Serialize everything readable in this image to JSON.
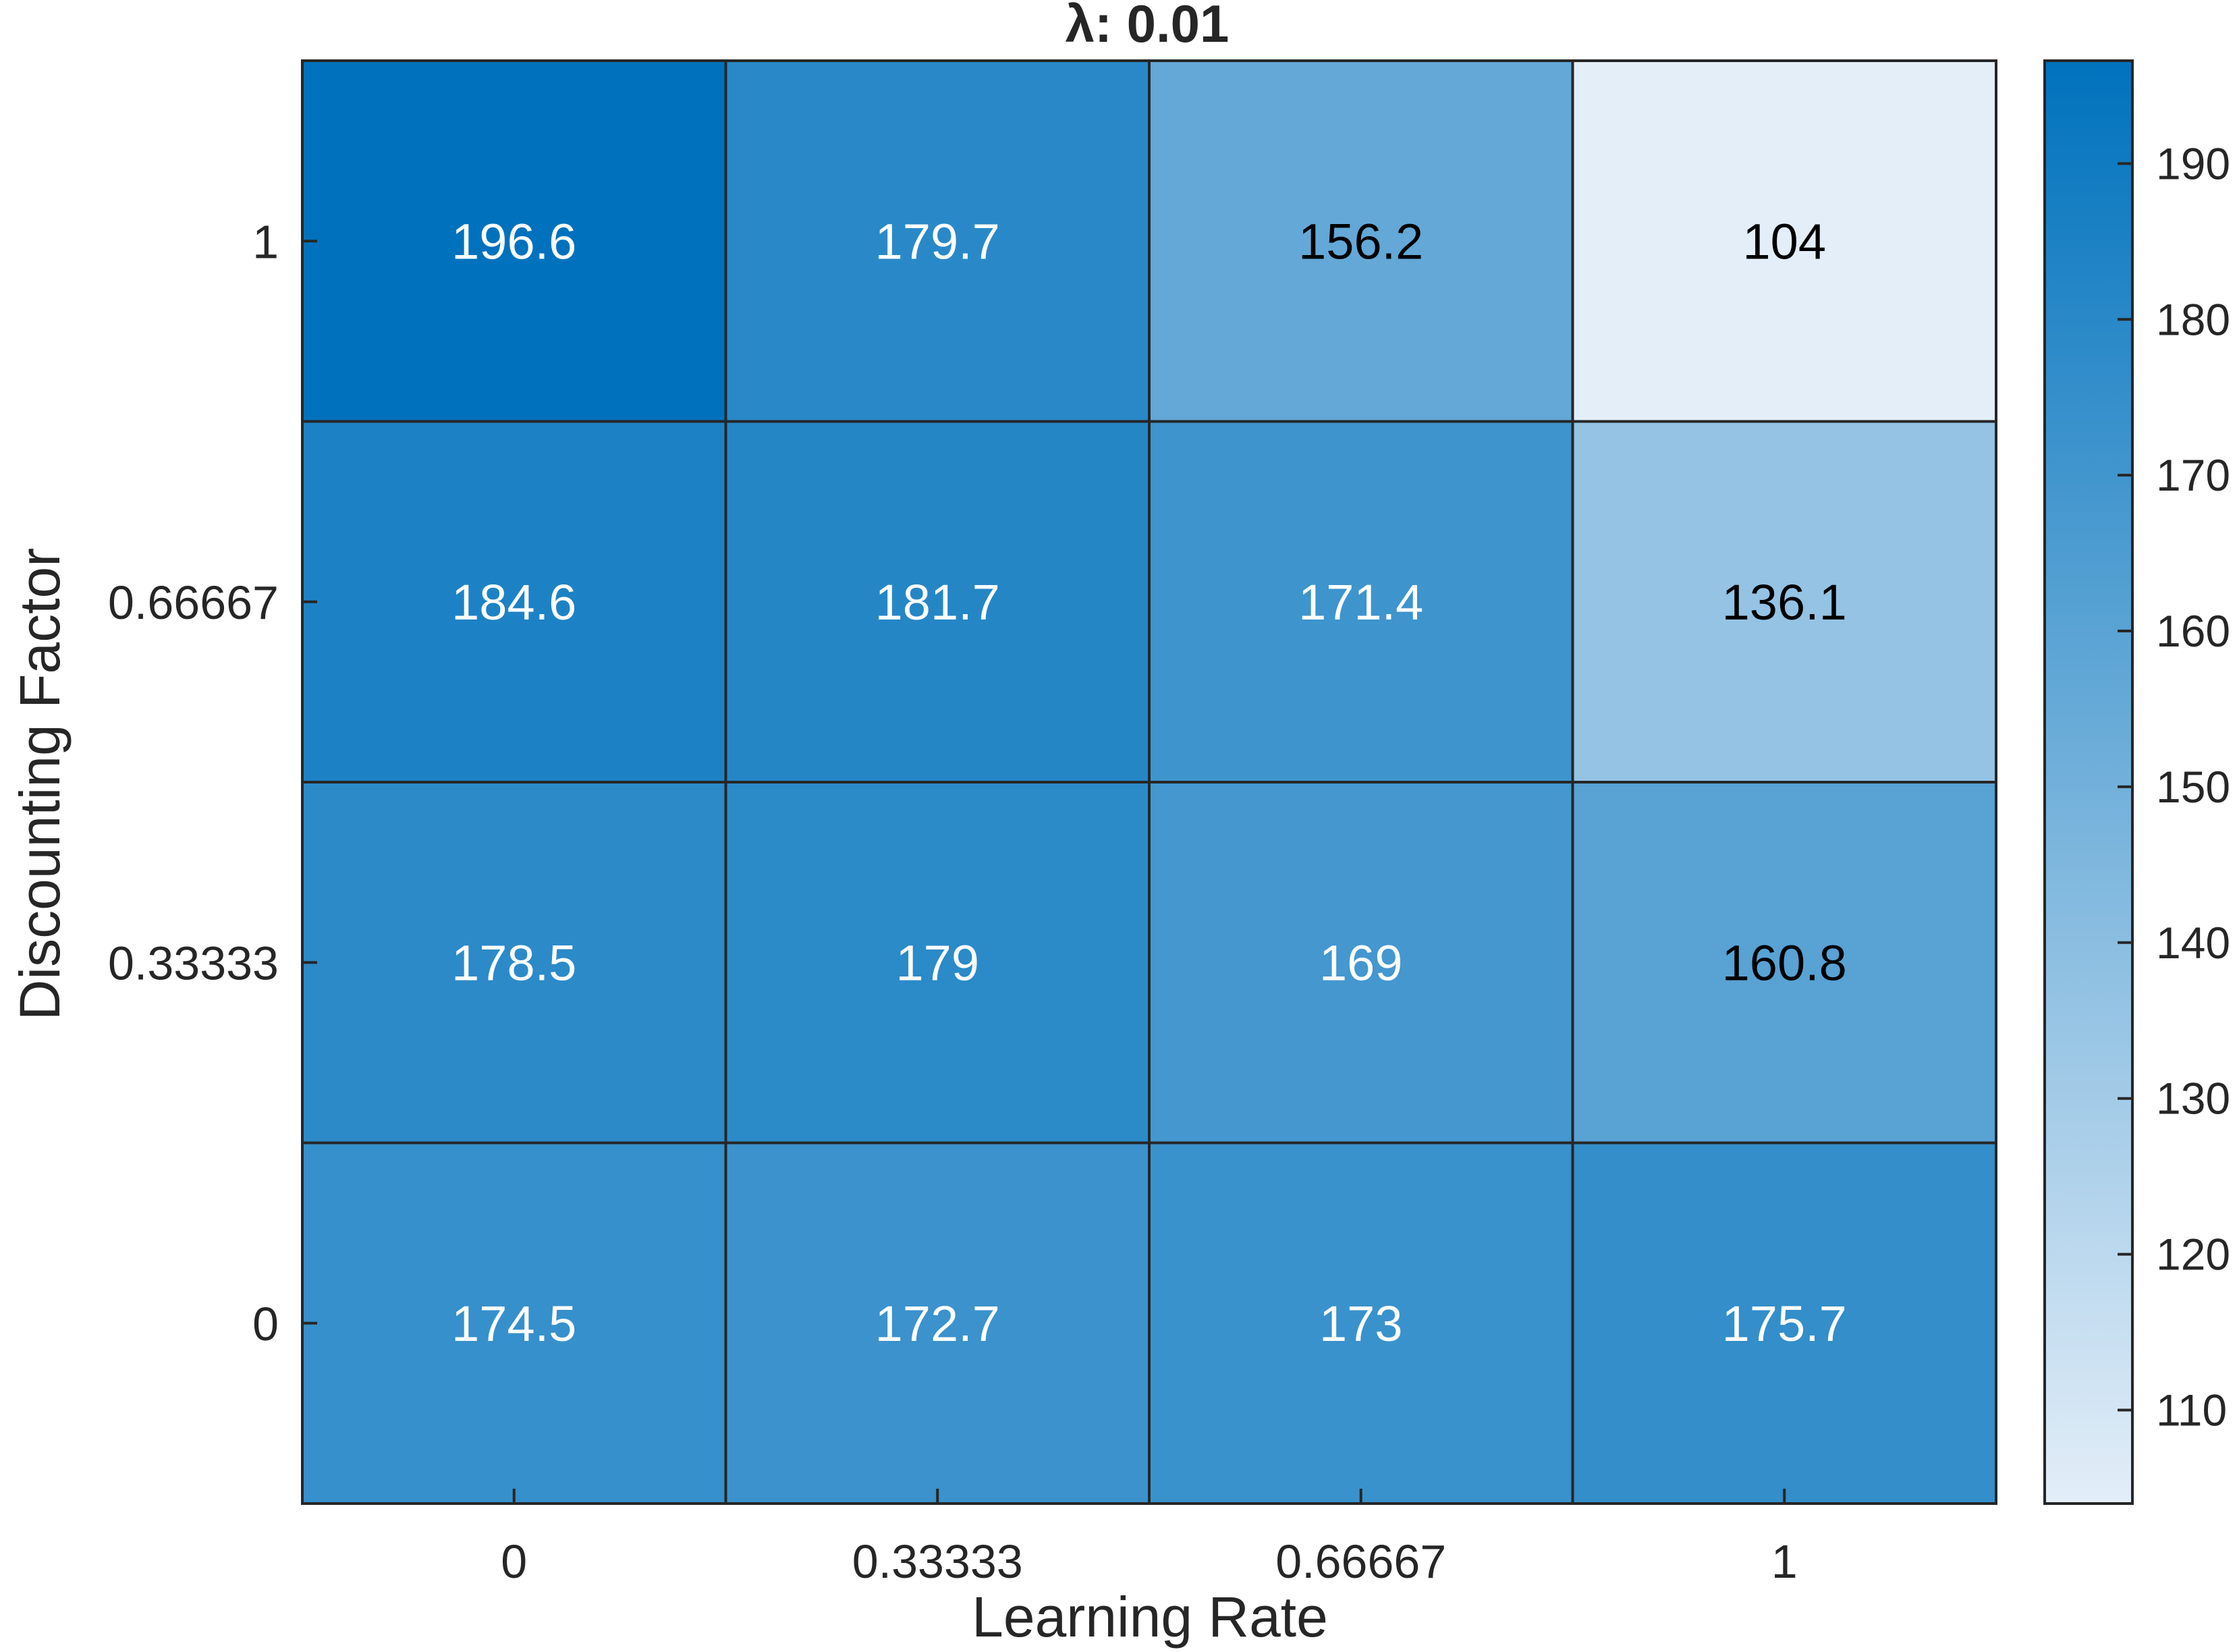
{
  "chart_data": {
    "type": "heatmap",
    "title": "λ: 0.01",
    "xlabel": "Learning Rate",
    "ylabel": "Discounting Factor",
    "x_categories": [
      "0",
      "0.33333",
      "0.66667",
      "1"
    ],
    "y_categories": [
      "1",
      "0.66667",
      "0.33333",
      "0"
    ],
    "values": [
      [
        196.6,
        179.7,
        156.2,
        104
      ],
      [
        184.6,
        181.7,
        171.4,
        136.1
      ],
      [
        178.5,
        179,
        169,
        160.8
      ],
      [
        174.5,
        172.7,
        173,
        175.7
      ]
    ],
    "cell_labels": [
      [
        "196.6",
        "179.7",
        "156.2",
        "104"
      ],
      [
        "184.6",
        "181.7",
        "171.4",
        "136.1"
      ],
      [
        "178.5",
        "179",
        "169",
        "160.8"
      ],
      [
        "174.5",
        "172.7",
        "173",
        "175.7"
      ]
    ],
    "colorbar": {
      "range": [
        104,
        196.6
      ],
      "ticks": [
        110,
        120,
        130,
        140,
        150,
        160,
        170,
        180,
        190
      ],
      "tick_labels": [
        "110",
        "120",
        "130",
        "140",
        "150",
        "160",
        "170",
        "180",
        "190"
      ],
      "color_low": "#e3eef8",
      "color_high": "#0072bd"
    },
    "grid": true,
    "legend": "colorbar-right"
  }
}
